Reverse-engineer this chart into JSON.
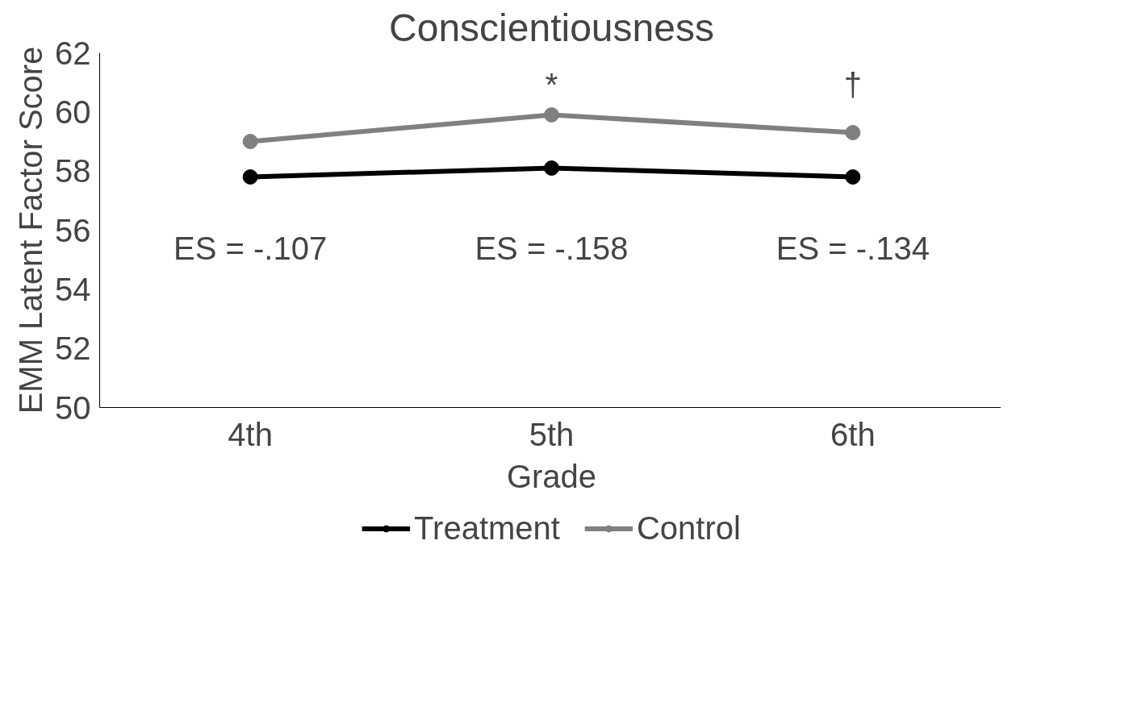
{
  "chart_data": {
    "type": "line",
    "title": "Conscientiousness",
    "xlabel": "Grade",
    "ylabel": "EMM Latent Factor Score",
    "categories": [
      "4th",
      "5th",
      "6th"
    ],
    "series": [
      {
        "name": "Treatment",
        "color": "#000000",
        "values": [
          57.8,
          58.1,
          57.8
        ]
      },
      {
        "name": "Control",
        "color": "#808080",
        "values": [
          59.0,
          59.9,
          59.3
        ]
      }
    ],
    "ylim": [
      50,
      62
    ],
    "yticks": [
      50,
      52,
      54,
      56,
      58,
      60,
      62
    ],
    "grid": false,
    "legend": "bottom",
    "marker": "circle",
    "line_style": "solid",
    "annotations": [
      "*",
      "†",
      "ES = -.107",
      "ES = -.158",
      "ES = -.134"
    ]
  }
}
